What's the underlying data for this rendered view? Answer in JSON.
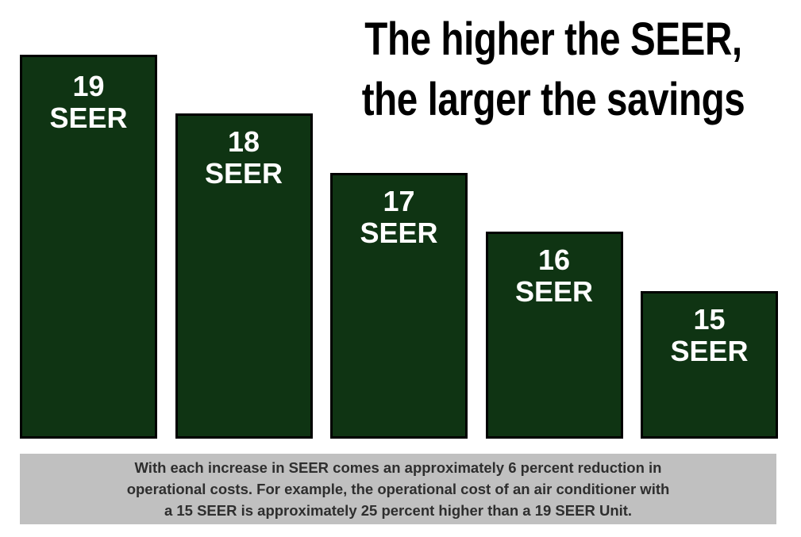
{
  "chart_data": {
    "type": "bar",
    "title": "The higher the SEER,\nthe larger the savings",
    "values": [
      19,
      18,
      17,
      16,
      15
    ],
    "value_labels": [
      "19\nSEER",
      "18\nSEER",
      "17\nSEER",
      "16\nSEER",
      "15\nSEER"
    ],
    "color": "#0f3413",
    "ylim": [
      12.5,
      19
    ],
    "note": "With each increase in SEER comes an approximately 6 percent reduction in\noperational costs. For example, the operational cost of an air conditioner with\na 15 SEER is approximately 25 percent higher than a 19 SEER Unit."
  }
}
